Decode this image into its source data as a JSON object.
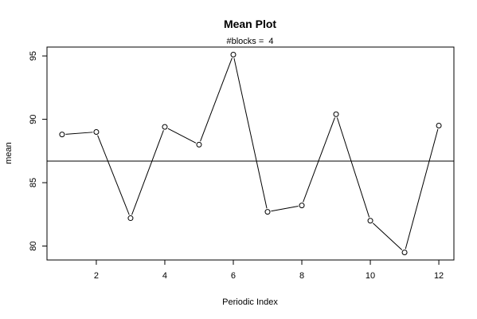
{
  "chart_data": {
    "type": "line",
    "title": "Mean Plot",
    "subtitle": "#blocks =  4",
    "xlabel": "Periodic Index",
    "ylabel": "mean",
    "x": [
      1,
      2,
      3,
      4,
      5,
      6,
      7,
      8,
      9,
      10,
      11,
      12
    ],
    "values": [
      88.8,
      89.0,
      82.2,
      89.4,
      88.0,
      95.1,
      82.7,
      83.2,
      90.4,
      82.0,
      79.5,
      89.5
    ],
    "reference_line": 86.7,
    "x_ticks": [
      "2",
      "4",
      "6",
      "8",
      "10",
      "12"
    ],
    "y_ticks": [
      "80",
      "85",
      "90",
      "95"
    ],
    "xlim": [
      0.56,
      12.44
    ],
    "ylim": [
      78.9,
      95.7
    ],
    "grid": false,
    "markers": "open-circle",
    "line_color": "#000000"
  }
}
